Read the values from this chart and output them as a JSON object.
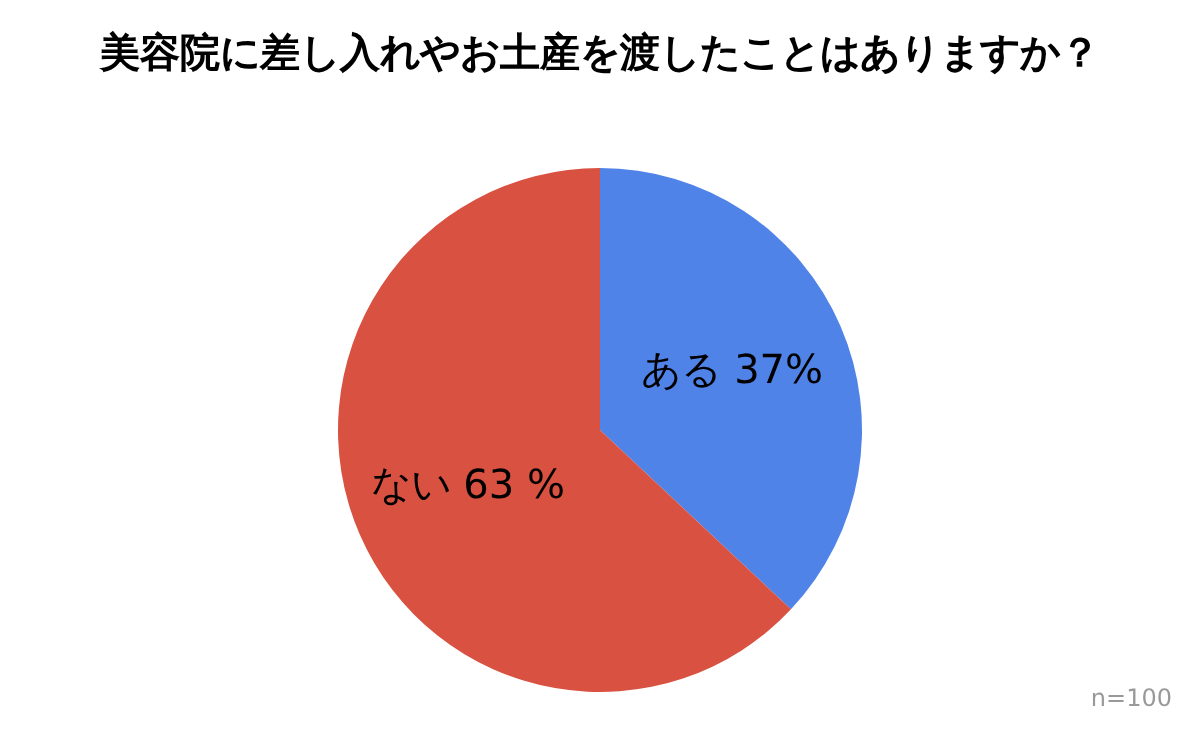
{
  "chart_data": {
    "type": "pie",
    "title": "美容院に差し入れやお土産を渡したことはありますか？",
    "categories": [
      "ある",
      "ない"
    ],
    "values": [
      37,
      63
    ],
    "colors": [
      "#5083e8",
      "#d95140"
    ],
    "value_labels": [
      "37%",
      "63 %"
    ],
    "legend": false,
    "annotations": [
      "n=100"
    ]
  }
}
